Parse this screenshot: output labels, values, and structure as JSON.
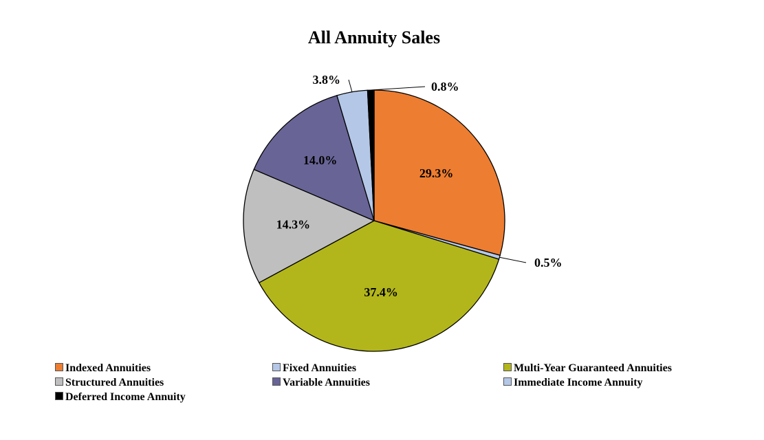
{
  "chart_data": {
    "type": "pie",
    "title": "All Annuity Sales",
    "slices": [
      {
        "name": "Indexed Annuities",
        "value": 29.3,
        "label": "29.3%",
        "color": "#ED7D31",
        "label_position": "inside"
      },
      {
        "name": "Fixed Annuities",
        "value": 0.5,
        "label": "0.5%",
        "color": "#B4C7E7",
        "label_position": "outside"
      },
      {
        "name": "Multi-Year Guaranteed Annuities",
        "value": 37.4,
        "label": "37.4%",
        "color": "#B3B61B",
        "label_position": "inside"
      },
      {
        "name": "Structured Annuities",
        "value": 14.3,
        "label": "14.3%",
        "color": "#BFBFBF",
        "label_position": "inside"
      },
      {
        "name": "Variable Annuities",
        "value": 14.0,
        "label": "14.0%",
        "color": "#686496",
        "label_position": "inside"
      },
      {
        "name": "Immediate Income Annuity",
        "value": 3.8,
        "label": "3.8%",
        "color": "#B4C7E7",
        "label_position": "outside"
      },
      {
        "name": "Deferred Income Annuity",
        "value": 0.8,
        "label": "0.8%",
        "color": "#000000",
        "label_position": "outside"
      }
    ],
    "start_angle": "12 o'clock",
    "direction": "clockwise",
    "legend_position": "bottom"
  }
}
